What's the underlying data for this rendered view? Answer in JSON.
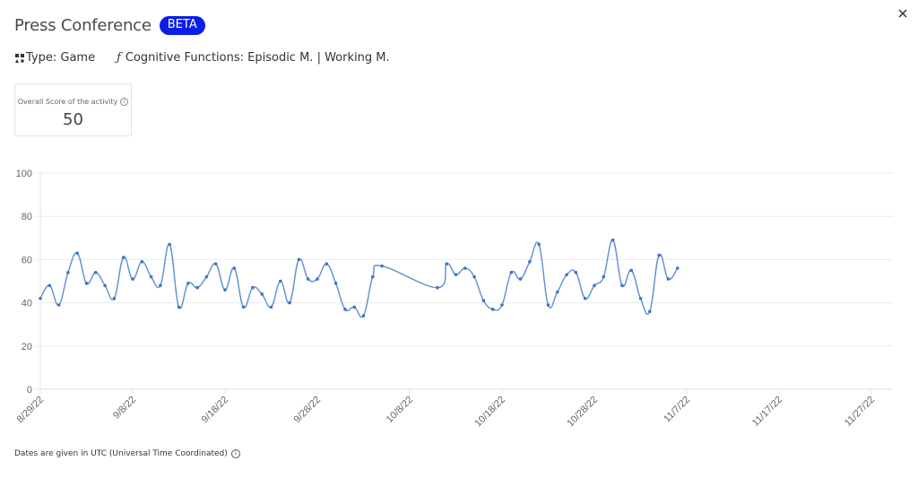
{
  "header": {
    "title": "Press Conference",
    "badge": "BETA",
    "badge_color": "#0a1ee6",
    "close_icon": "close-icon"
  },
  "meta": {
    "type_label": "Type: Game",
    "type_icon": "game-grid-icon",
    "functions_label": "Cognitive Functions: Episodic M. | Working M.",
    "functions_icon": "function-icon"
  },
  "score_card": {
    "label": "Overall Score of the activity",
    "value": "50",
    "info_icon": "info-icon"
  },
  "footer": {
    "note": "Dates are given in UTC (Universal Time Coordinated)",
    "info_icon": "info-icon"
  },
  "chart_data": {
    "type": "line",
    "title": "",
    "xlabel": "",
    "ylabel": "",
    "ylim": [
      0,
      100
    ],
    "yticks": [
      0,
      20,
      40,
      60,
      80,
      100
    ],
    "grid": true,
    "legend": "none",
    "line_color": "#5b8fd4",
    "x_tick_labels": [
      "8/29/22",
      "9/8/22",
      "9/18/22",
      "9/28/22",
      "10/8/22",
      "10/18/22",
      "10/28/22",
      "11/7/22",
      "11/17/22",
      "11/27/22"
    ],
    "x_range": [
      "8/29/22",
      "11/30/22"
    ],
    "series": [
      {
        "name": "Score",
        "points": [
          {
            "x": "8/29/22",
            "y": 42
          },
          {
            "x": "8/30/22",
            "y": 48
          },
          {
            "x": "8/31/22",
            "y": 39
          },
          {
            "x": "9/1/22",
            "y": 54
          },
          {
            "x": "9/2/22",
            "y": 63
          },
          {
            "x": "9/3/22",
            "y": 49
          },
          {
            "x": "9/4/22",
            "y": 54
          },
          {
            "x": "9/5/22",
            "y": 48
          },
          {
            "x": "9/6/22",
            "y": 42
          },
          {
            "x": "9/7/22",
            "y": 61
          },
          {
            "x": "9/8/22",
            "y": 51
          },
          {
            "x": "9/9/22",
            "y": 59
          },
          {
            "x": "9/10/22",
            "y": 52
          },
          {
            "x": "9/11/22",
            "y": 48
          },
          {
            "x": "9/12/22",
            "y": 67
          },
          {
            "x": "9/13/22",
            "y": 38
          },
          {
            "x": "9/14/22",
            "y": 49
          },
          {
            "x": "9/15/22",
            "y": 47
          },
          {
            "x": "9/16/22",
            "y": 52
          },
          {
            "x": "9/17/22",
            "y": 58
          },
          {
            "x": "9/18/22",
            "y": 46
          },
          {
            "x": "9/19/22",
            "y": 56
          },
          {
            "x": "9/20/22",
            "y": 38
          },
          {
            "x": "9/21/22",
            "y": 47
          },
          {
            "x": "9/22/22",
            "y": 44
          },
          {
            "x": "9/23/22",
            "y": 38
          },
          {
            "x": "9/24/22",
            "y": 50
          },
          {
            "x": "9/25/22",
            "y": 40
          },
          {
            "x": "9/26/22",
            "y": 60
          },
          {
            "x": "9/27/22",
            "y": 51
          },
          {
            "x": "9/28/22",
            "y": 51
          },
          {
            "x": "9/29/22",
            "y": 58
          },
          {
            "x": "9/30/22",
            "y": 49
          },
          {
            "x": "10/1/22",
            "y": 37
          },
          {
            "x": "10/2/22",
            "y": 38
          },
          {
            "x": "10/3/22",
            "y": 34
          },
          {
            "x": "10/4/22",
            "y": 52
          },
          {
            "x": "10/5/22",
            "y": 57
          },
          {
            "x": "10/11/22",
            "y": 47
          },
          {
            "x": "10/12/22",
            "y": 58
          },
          {
            "x": "10/13/22",
            "y": 53
          },
          {
            "x": "10/14/22",
            "y": 56
          },
          {
            "x": "10/15/22",
            "y": 52
          },
          {
            "x": "10/16/22",
            "y": 41
          },
          {
            "x": "10/17/22",
            "y": 37
          },
          {
            "x": "10/18/22",
            "y": 39
          },
          {
            "x": "10/19/22",
            "y": 54
          },
          {
            "x": "10/20/22",
            "y": 51
          },
          {
            "x": "10/21/22",
            "y": 59
          },
          {
            "x": "10/22/22",
            "y": 67
          },
          {
            "x": "10/23/22",
            "y": 39
          },
          {
            "x": "10/24/22",
            "y": 45
          },
          {
            "x": "10/25/22",
            "y": 53
          },
          {
            "x": "10/26/22",
            "y": 54
          },
          {
            "x": "10/27/22",
            "y": 42
          },
          {
            "x": "10/28/22",
            "y": 48
          },
          {
            "x": "10/29/22",
            "y": 52
          },
          {
            "x": "10/30/22",
            "y": 69
          },
          {
            "x": "10/31/22",
            "y": 48
          },
          {
            "x": "11/1/22",
            "y": 55
          },
          {
            "x": "11/2/22",
            "y": 42
          },
          {
            "x": "11/3/22",
            "y": 36
          },
          {
            "x": "11/4/22",
            "y": 62
          },
          {
            "x": "11/5/22",
            "y": 51
          },
          {
            "x": "11/6/22",
            "y": 56
          }
        ]
      }
    ]
  }
}
